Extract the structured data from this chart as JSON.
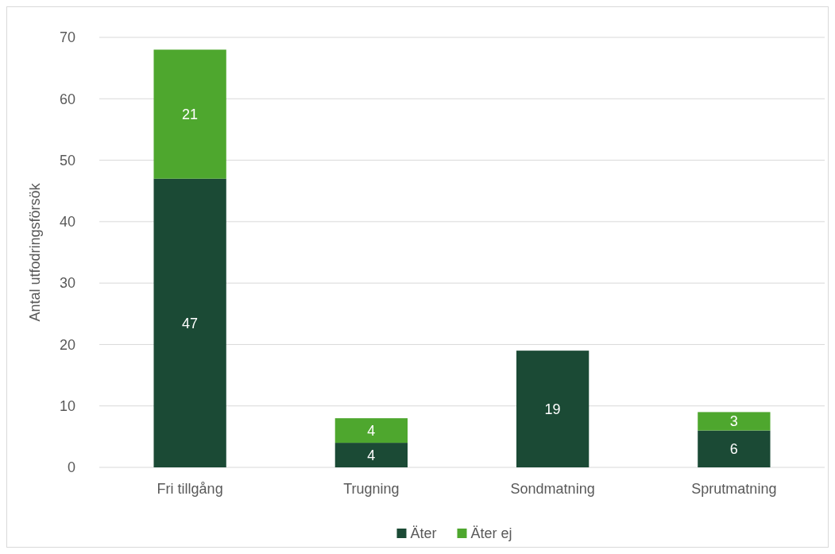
{
  "chart_data": {
    "type": "bar",
    "stacked": true,
    "ylabel": "Antal utfodringsförsök",
    "categories": [
      "Fri tillgång",
      "Trugning",
      "Sondmatning",
      "Sprutmatning"
    ],
    "series": [
      {
        "name": "Äter",
        "color": "#1b4a35",
        "values": [
          47,
          4,
          19,
          6
        ]
      },
      {
        "name": "Äter ej",
        "color": "#4ea72e",
        "values": [
          21,
          4,
          null,
          3
        ]
      }
    ],
    "ylim": [
      0,
      70
    ],
    "yticks": [
      0,
      10,
      20,
      30,
      40,
      50,
      60,
      70
    ],
    "grid": "y",
    "legend": "bottom",
    "data_labels": true
  }
}
